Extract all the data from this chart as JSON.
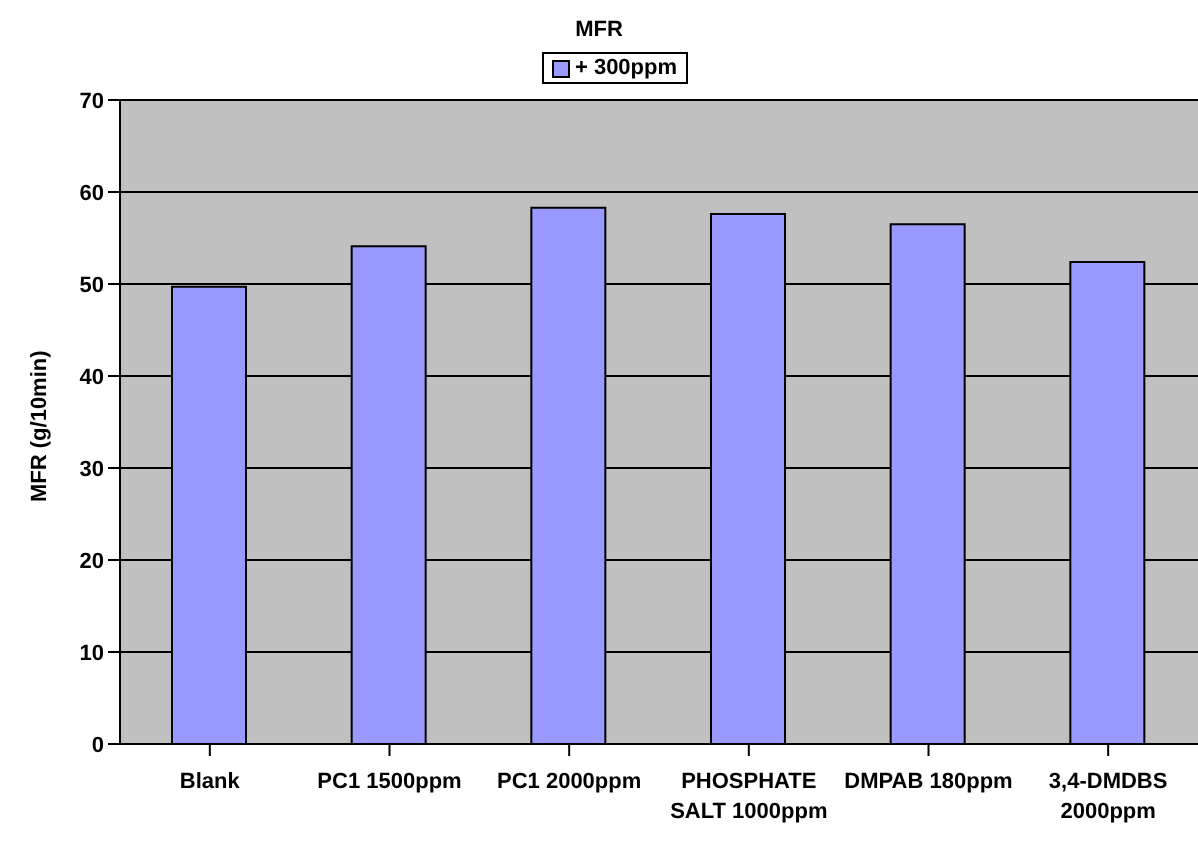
{
  "chart_data": {
    "type": "bar",
    "title": "MFR",
    "ylabel": "MFR (g/10min)",
    "categories": [
      "Blank",
      "PC1 1500ppm",
      "PC1 2000ppm",
      "PHOSPHATE SALT 1000ppm",
      "DMPAB 180ppm",
      "3,4-DMDBS 2000ppm"
    ],
    "series": [
      {
        "name": "+ 300ppm",
        "color": "#9999ff",
        "values": [
          49.7,
          54.1,
          58.3,
          57.6,
          56.5,
          52.4
        ]
      }
    ],
    "ylim": [
      0,
      70
    ],
    "yticks": [
      0,
      10,
      20,
      30,
      40,
      50,
      60,
      70
    ],
    "grid": "y",
    "legend": "top"
  }
}
